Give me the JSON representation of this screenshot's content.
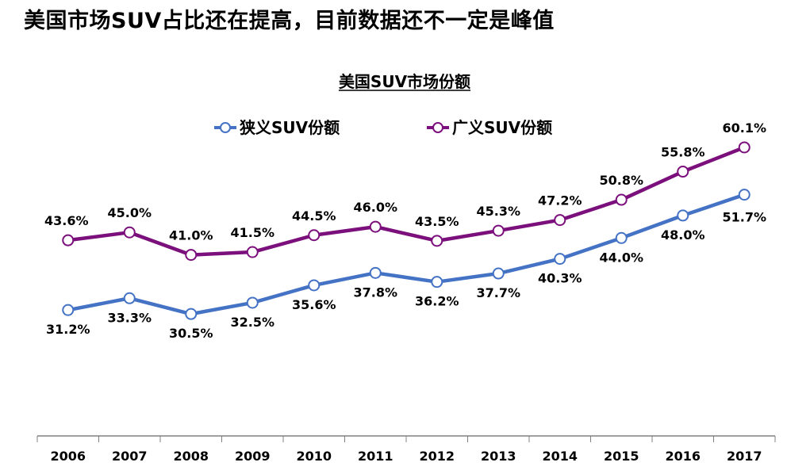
{
  "headline": "美国市场SUV占比还在提高，目前数据还不一定是峰值",
  "chart_data": {
    "type": "line",
    "title": "美国SUV市场份额",
    "xlabel": "",
    "ylabel": "",
    "ylim": [
      20,
      65
    ],
    "grid": false,
    "legend_position": "top",
    "categories": [
      "2006",
      "2007",
      "2008",
      "2009",
      "2010",
      "2011",
      "2012",
      "2013",
      "2014",
      "2015",
      "2016",
      "2017"
    ],
    "series": [
      {
        "name": "狭义SUV份额",
        "color": "#4472C4",
        "values": [
          31.2,
          33.3,
          30.5,
          32.5,
          35.6,
          37.8,
          36.2,
          37.7,
          40.3,
          44.0,
          48.0,
          51.7
        ],
        "labels": [
          "31.2%",
          "33.3%",
          "30.5%",
          "32.5%",
          "35.6%",
          "37.8%",
          "36.2%",
          "37.7%",
          "40.3%",
          "44.0%",
          "48.0%",
          "51.7%"
        ]
      },
      {
        "name": "广义SUV份额",
        "color": "#7B0F7B",
        "values": [
          43.6,
          45.0,
          41.0,
          41.5,
          44.5,
          46.0,
          43.5,
          45.3,
          47.2,
          50.8,
          55.8,
          60.1
        ],
        "labels": [
          "43.6%",
          "45.0%",
          "41.0%",
          "41.5%",
          "44.5%",
          "46.0%",
          "43.5%",
          "45.3%",
          "47.2%",
          "50.8%",
          "55.8%",
          "60.1%"
        ]
      }
    ]
  }
}
